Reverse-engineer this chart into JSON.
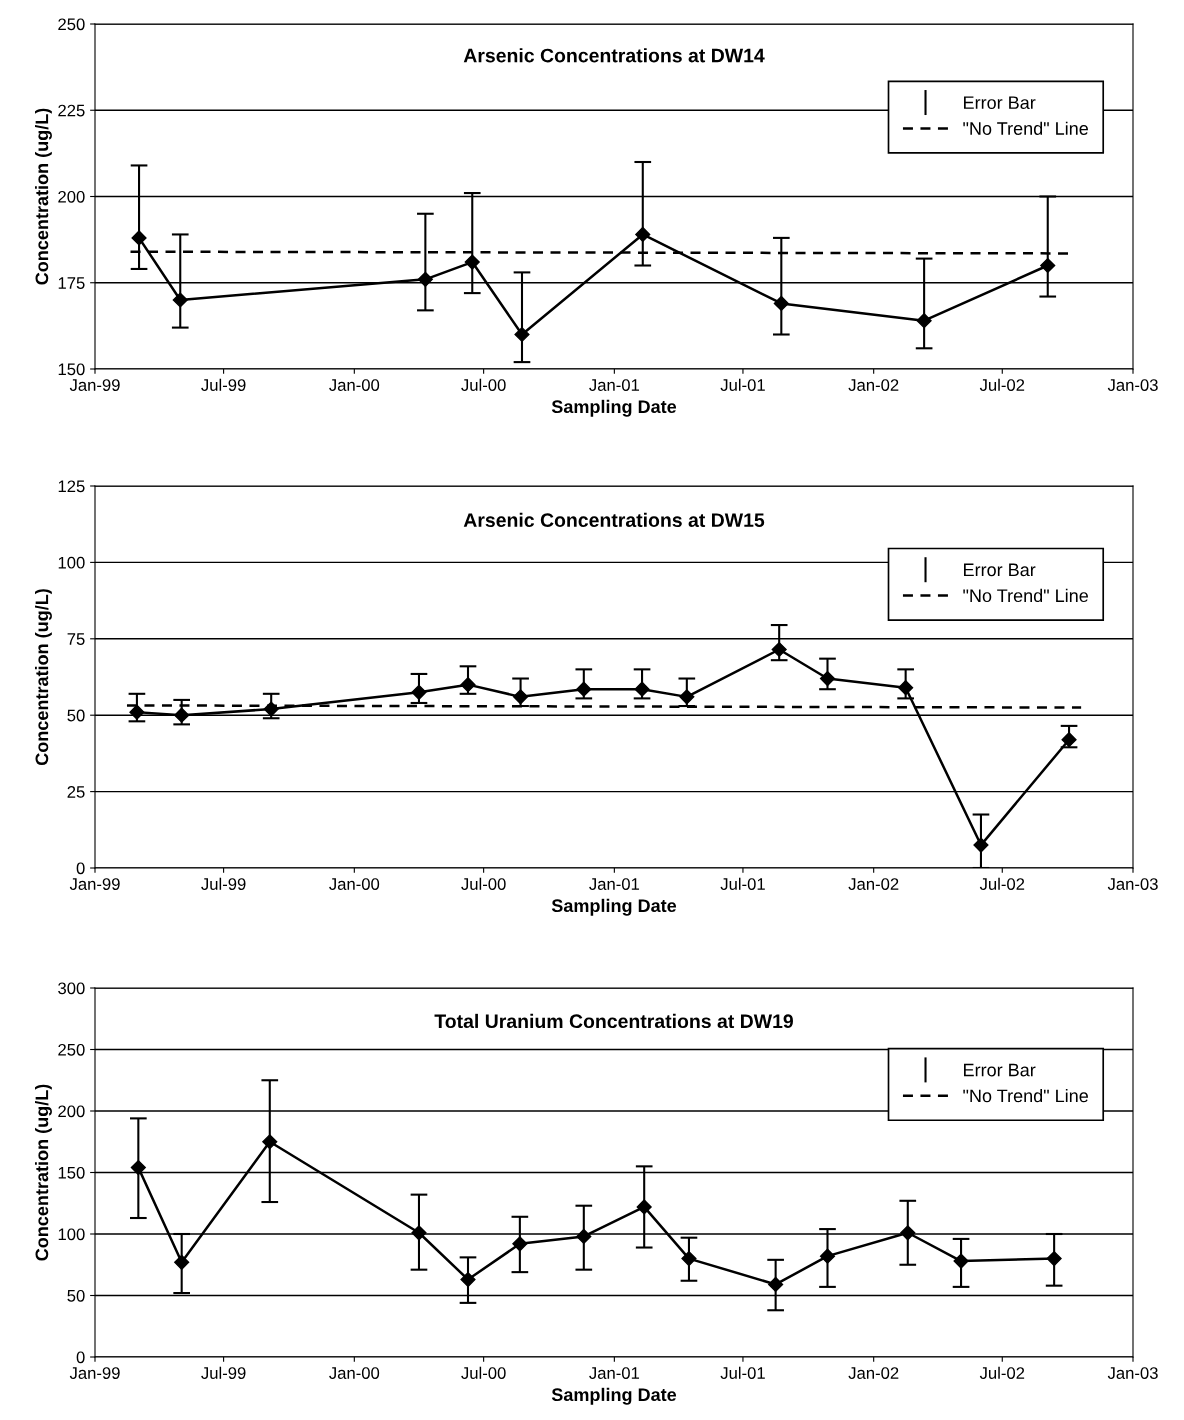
{
  "chart_data": [
    {
      "type": "line",
      "title": "Arsenic Concentrations at DW14",
      "xlabel": "Sampling Date",
      "ylabel": "Concentration (ug/L)",
      "xlim": [
        "1999-01",
        "2003-01"
      ],
      "xticks": [
        {
          "value": "1999-01",
          "label": "Jan-99"
        },
        {
          "value": "1999-07",
          "label": "Jul-99"
        },
        {
          "value": "2000-01",
          "label": "Jan-00"
        },
        {
          "value": "2000-07",
          "label": "Jul-00"
        },
        {
          "value": "2001-01",
          "label": "Jan-01"
        },
        {
          "value": "2001-07",
          "label": "Jul-01"
        },
        {
          "value": "2002-01",
          "label": "Jan-02"
        },
        {
          "value": "2002-07",
          "label": "Jul-02"
        },
        {
          "value": "2003-01",
          "label": "Jan-03"
        }
      ],
      "ylim": [
        150,
        250
      ],
      "yticks": [
        150,
        175,
        200,
        225,
        250
      ],
      "grid": "y",
      "legend": "top right",
      "marker": "diamond",
      "series": [
        {
          "name": "Error Bar",
          "color": "#000000",
          "x": [
            "1999-03-04",
            "1999-05-01",
            "2000-04-10",
            "2000-06-15",
            "2000-08-24",
            "2001-02-10",
            "2001-08-24",
            "2002-03-13",
            "2002-09-03"
          ],
          "values": [
            188,
            170,
            176,
            181,
            160,
            189,
            169,
            164,
            180
          ],
          "errors": [
            [
              179,
              209
            ],
            [
              162,
              189
            ],
            [
              167,
              195
            ],
            [
              172,
              201
            ],
            [
              152,
              178
            ],
            [
              180,
              210
            ],
            [
              160,
              188
            ],
            [
              156,
              182
            ],
            [
              171,
              200
            ]
          ]
        },
        {
          "name": "\"No Trend\" Line",
          "type": "line",
          "line_style": "dashed",
          "marker": "none",
          "color": "#000000",
          "x": [
            "1999-02-20",
            "2002-10-03"
          ],
          "values": [
            184,
            183.5
          ]
        }
      ]
    },
    {
      "type": "line",
      "title": "Arsenic Concentrations at DW15",
      "xlabel": "Sampling Date",
      "ylabel": "Concentration (ug/L)",
      "xlim": [
        "1999-01",
        "2003-01"
      ],
      "xticks": [
        {
          "value": "1999-01",
          "label": "Jan-99"
        },
        {
          "value": "1999-07",
          "label": "Jul-99"
        },
        {
          "value": "2000-01",
          "label": "Jan-00"
        },
        {
          "value": "2000-07",
          "label": "Jul-00"
        },
        {
          "value": "2001-01",
          "label": "Jan-01"
        },
        {
          "value": "2001-07",
          "label": "Jul-01"
        },
        {
          "value": "2002-01",
          "label": "Jan-02"
        },
        {
          "value": "2002-07",
          "label": "Jul-02"
        },
        {
          "value": "2003-01",
          "label": "Jan-03"
        }
      ],
      "ylim": [
        0,
        125
      ],
      "yticks": [
        0,
        25,
        50,
        75,
        100,
        125
      ],
      "grid": "y",
      "legend": "top right",
      "marker": "diamond",
      "series": [
        {
          "name": "Error Bar",
          "color": "#000000",
          "x": [
            "1999-03-01",
            "1999-05-03",
            "1999-09-06",
            "2000-04-01",
            "2000-06-09",
            "2000-08-22",
            "2000-11-19",
            "2001-02-09",
            "2001-04-13",
            "2001-08-21",
            "2001-10-28",
            "2002-02-15",
            "2002-06-01",
            "2002-10-03"
          ],
          "values": [
            51,
            50,
            52,
            57.5,
            60,
            56,
            58.5,
            58.5,
            56,
            71.5,
            62,
            59,
            7.5,
            42
          ],
          "errors": [
            [
              48,
              57
            ],
            [
              47,
              55
            ],
            [
              49,
              57
            ],
            [
              54,
              63.5
            ],
            [
              57,
              66
            ],
            [
              53,
              62
            ],
            [
              55.5,
              65
            ],
            [
              55.5,
              65
            ],
            [
              53,
              62
            ],
            [
              68,
              79.5
            ],
            [
              58.5,
              68.5
            ],
            [
              55.5,
              65
            ],
            [
              0,
              17.5
            ],
            [
              39.5,
              46.5
            ]
          ]
        },
        {
          "name": "\"No Trend\" Line",
          "type": "line",
          "line_style": "dashed",
          "marker": "none",
          "color": "#000000",
          "x": [
            "1999-02-15",
            "2002-10-20"
          ],
          "values": [
            53.2,
            52.5
          ]
        }
      ]
    },
    {
      "type": "line",
      "title": "Total Uranium Concentrations at DW19",
      "xlabel": "Sampling Date",
      "ylabel": "Concentration (ug/L)",
      "xlim": [
        "1999-01",
        "2003-01"
      ],
      "xticks": [
        {
          "value": "1999-01",
          "label": "Jan-99"
        },
        {
          "value": "1999-07",
          "label": "Jul-99"
        },
        {
          "value": "2000-01",
          "label": "Jan-00"
        },
        {
          "value": "2000-07",
          "label": "Jul-00"
        },
        {
          "value": "2001-01",
          "label": "Jan-01"
        },
        {
          "value": "2001-07",
          "label": "Jul-01"
        },
        {
          "value": "2002-01",
          "label": "Jan-02"
        },
        {
          "value": "2002-07",
          "label": "Jul-02"
        },
        {
          "value": "2003-01",
          "label": "Jan-03"
        }
      ],
      "ylim": [
        0,
        300
      ],
      "yticks": [
        0,
        50,
        100,
        150,
        200,
        250,
        300
      ],
      "grid": "y",
      "legend": "top right",
      "marker": "diamond",
      "series": [
        {
          "name": "Error Bar",
          "color": "#000000",
          "x": [
            "1999-03-03",
            "1999-05-03",
            "1999-09-04",
            "2000-04-01",
            "2000-06-09",
            "2000-08-21",
            "2000-11-19",
            "2001-02-12",
            "2001-04-16",
            "2001-08-16",
            "2001-10-28",
            "2002-02-18",
            "2002-05-04",
            "2002-09-12"
          ],
          "values": [
            154,
            77,
            175,
            101,
            63,
            92,
            98,
            122,
            80,
            59,
            82,
            101,
            78,
            80
          ],
          "errors": [
            [
              113,
              194
            ],
            [
              52,
              100
            ],
            [
              126,
              225
            ],
            [
              71,
              132
            ],
            [
              44,
              81
            ],
            [
              69,
              114
            ],
            [
              71,
              123
            ],
            [
              89,
              155
            ],
            [
              62,
              97
            ],
            [
              38,
              79
            ],
            [
              57,
              104
            ],
            [
              75,
              127
            ],
            [
              57,
              96
            ],
            [
              58,
              100
            ]
          ]
        },
        {
          "name": "\"No Trend\" Line",
          "type": "line",
          "line_style": "dashed",
          "marker": "none",
          "color": "#000000"
        }
      ]
    }
  ]
}
